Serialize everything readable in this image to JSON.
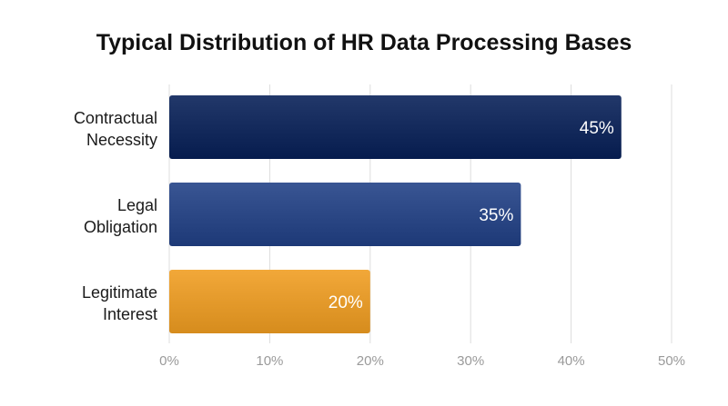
{
  "chart_data": {
    "type": "bar",
    "orientation": "horizontal",
    "title": "Typical Distribution of HR Data Processing Bases",
    "categories": [
      "Contractual Necessity",
      "Legal Obligation",
      "Legitimate Interest"
    ],
    "category_lines": [
      [
        "Contractual",
        "Necessity"
      ],
      [
        "Legal",
        "Obligation"
      ],
      [
        "Legitimate",
        "Interest"
      ]
    ],
    "values": [
      45,
      35,
      20
    ],
    "value_labels": [
      "45%",
      "35%",
      "20%"
    ],
    "bar_colors": [
      "#142a5c",
      "#2b4785",
      "#e49a2b"
    ],
    "xlim": [
      0,
      50
    ],
    "xticks": [
      0,
      10,
      20,
      30,
      40,
      50
    ],
    "xtick_labels": [
      "0%",
      "10%",
      "20%",
      "30%",
      "40%",
      "50%"
    ],
    "xlabel": "",
    "ylabel": "",
    "grid": true,
    "legend": "none"
  }
}
